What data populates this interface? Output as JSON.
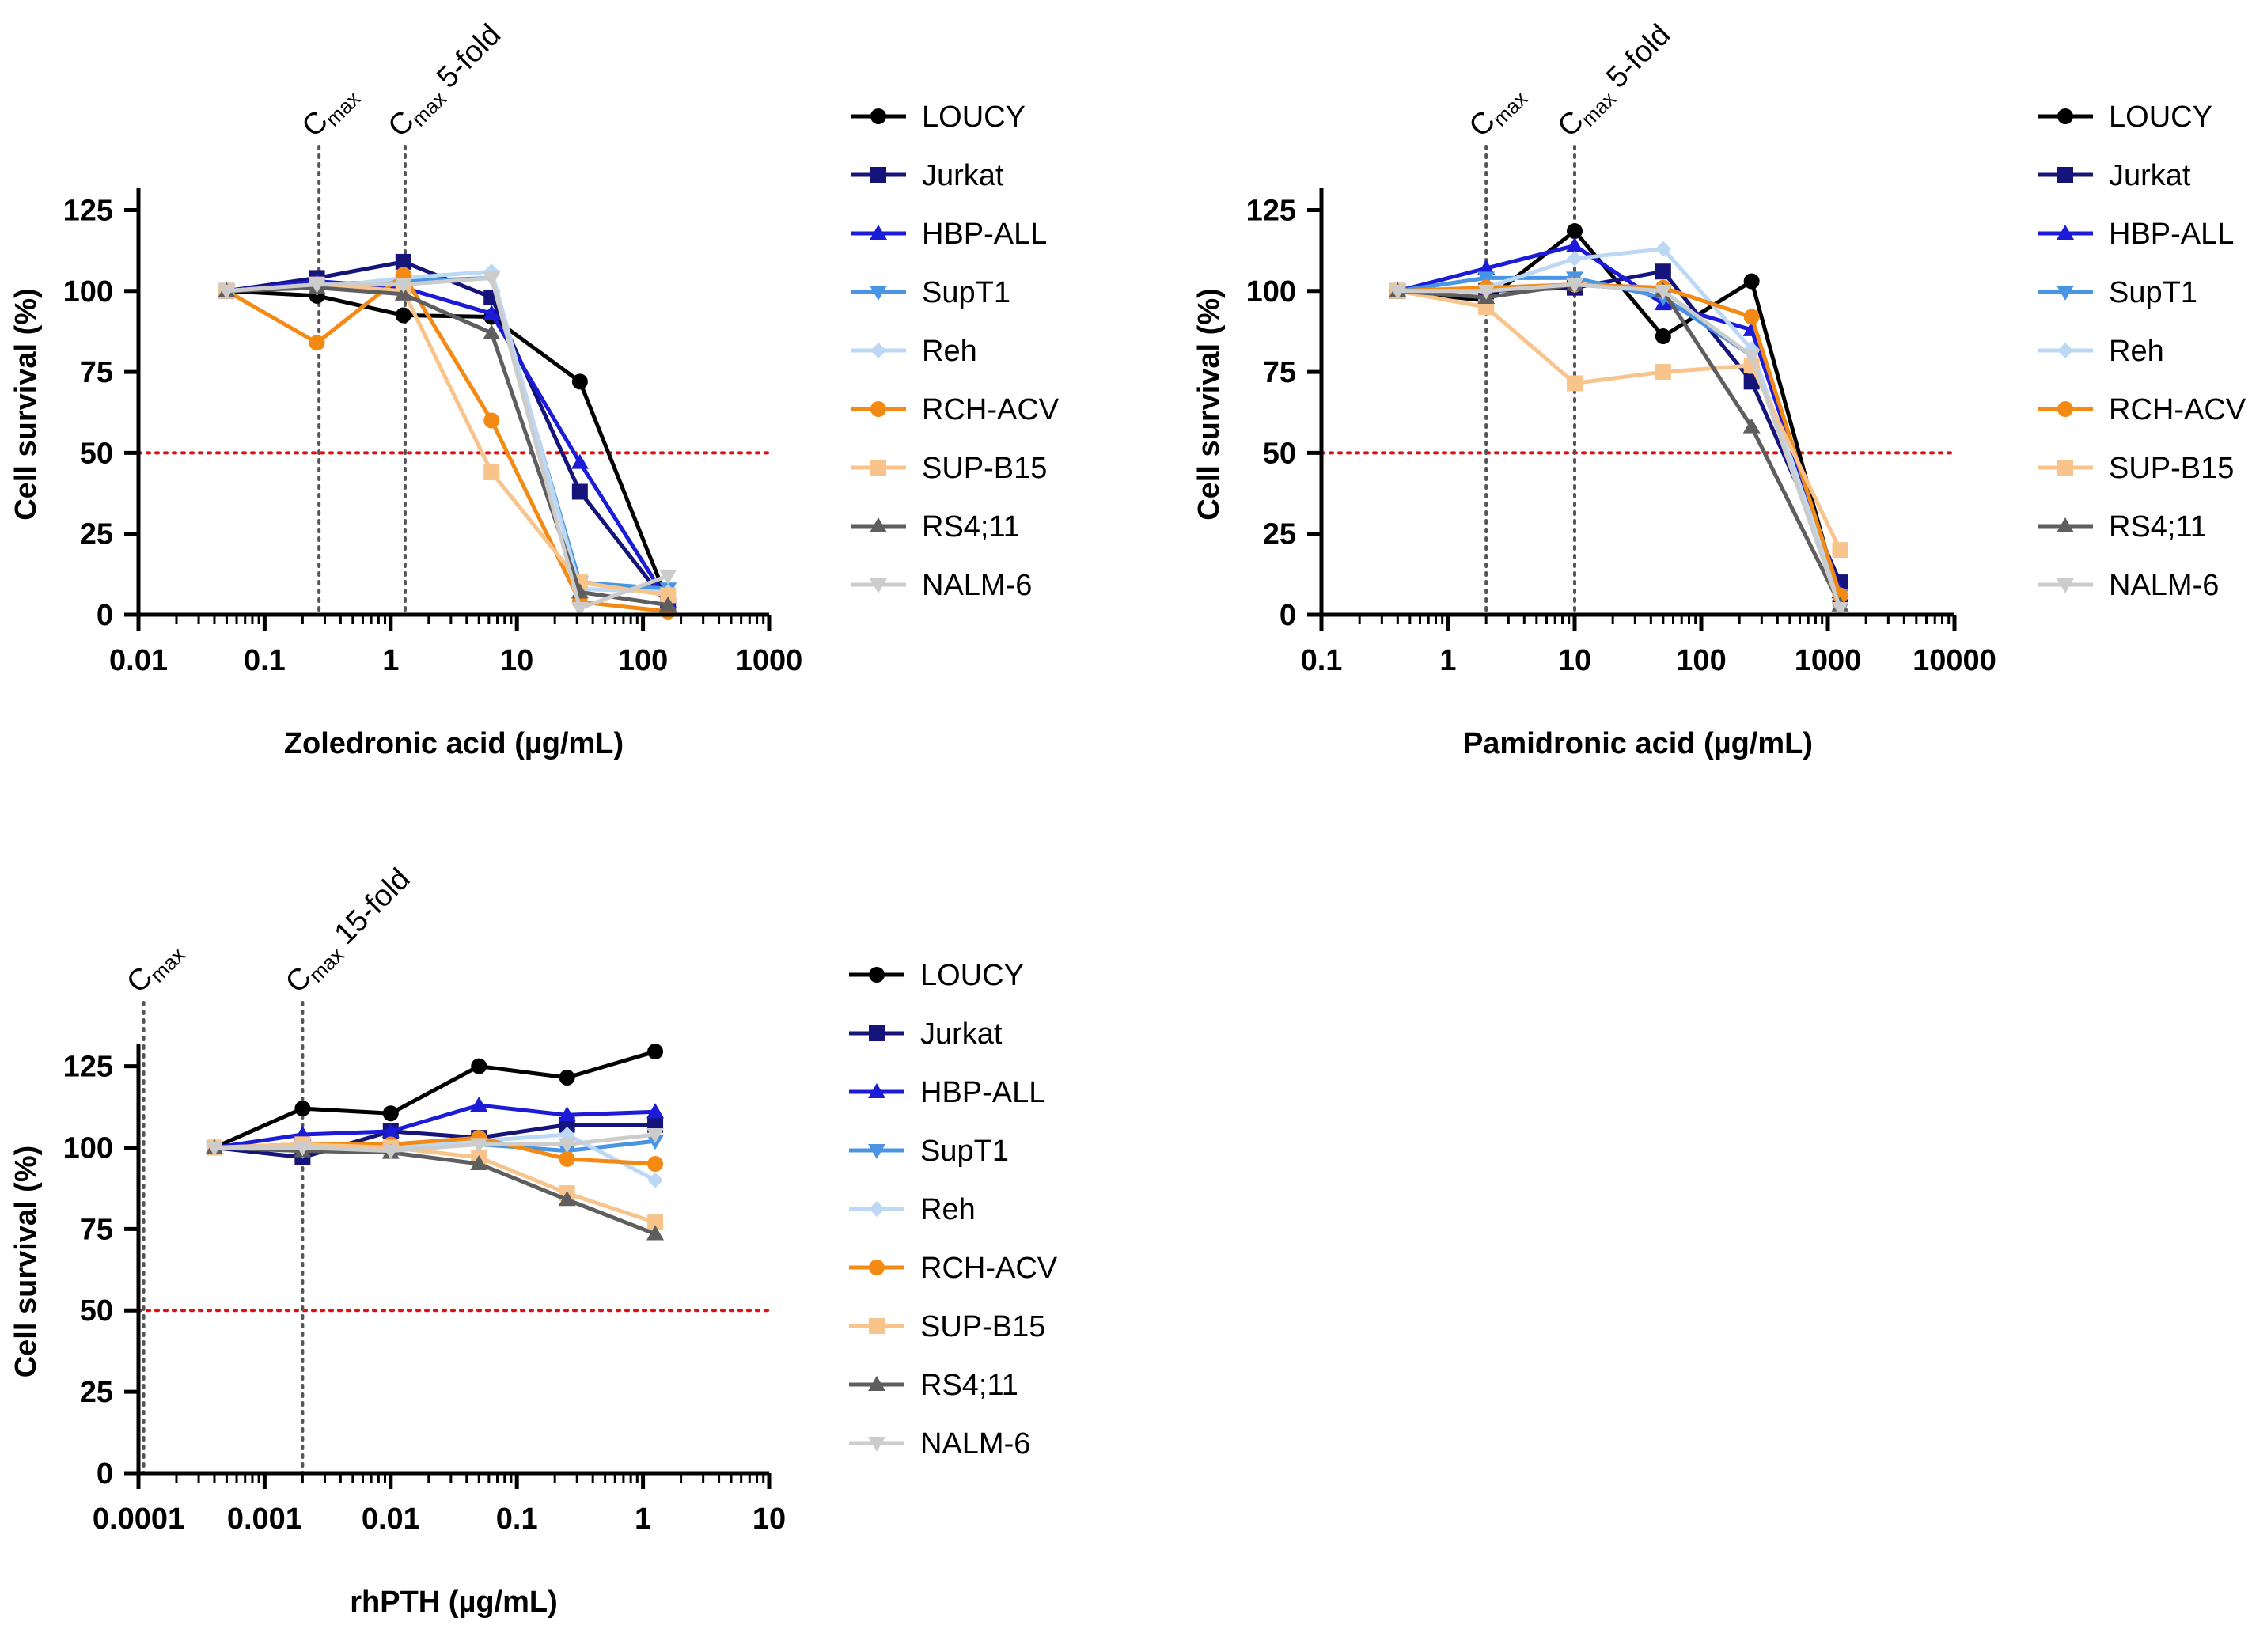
{
  "legend_series": [
    {
      "name": "LOUCY",
      "color": "#000000",
      "marker": "circle"
    },
    {
      "name": "Jurkat",
      "color": "#14147a",
      "marker": "square"
    },
    {
      "name": "HBP-ALL",
      "color": "#1c1cd8",
      "marker": "triangle-up"
    },
    {
      "name": "SupT1",
      "color": "#4a94e4",
      "marker": "triangle-down"
    },
    {
      "name": "Reh",
      "color": "#bcd8f4",
      "marker": "diamond"
    },
    {
      "name": "RCH-ACV",
      "color": "#f28a14",
      "marker": "circle"
    },
    {
      "name": "SUP-B15",
      "color": "#f8c48c",
      "marker": "square"
    },
    {
      "name": "RS4;11",
      "color": "#5e5e5e",
      "marker": "triangle-up"
    },
    {
      "name": "NALM-6",
      "color": "#cccccc",
      "marker": "triangle-down"
    }
  ],
  "threshold_color": "#e01010",
  "chart_data": [
    {
      "type": "line",
      "xscale": "log",
      "xlabel": "Zoledronic acid (µg/mL)",
      "ylabel": "Cell survival (%)",
      "xlim": [
        0.01,
        1000
      ],
      "ylim": [
        0,
        130
      ],
      "xticks": [
        "0.01",
        "0.1",
        "1",
        "10",
        "100",
        "1000"
      ],
      "yticks": [
        "0",
        "25",
        "50",
        "75",
        "100",
        "125"
      ],
      "threshold": 50,
      "reference_lines": [
        {
          "x": 0.27,
          "label": "C",
          "sub": "max",
          "suffix": ""
        },
        {
          "x": 1.3,
          "label": "C",
          "sub": "max",
          "suffix": " 5-fold"
        }
      ],
      "x": [
        0.05,
        0.26,
        1.26,
        6.3,
        31.6,
        158
      ],
      "series": [
        {
          "name": "LOUCY",
          "values": [
            100,
            98.5,
            92.5,
            92,
            72,
            4
          ]
        },
        {
          "name": "Jurkat",
          "values": [
            100,
            104,
            109,
            98,
            38,
            3
          ]
        },
        {
          "name": "HBP-ALL",
          "values": [
            100,
            103,
            101,
            93,
            47,
            4
          ]
        },
        {
          "name": "SupT1",
          "values": [
            100,
            102,
            103,
            104,
            10,
            8
          ]
        },
        {
          "name": "Reh",
          "values": [
            100,
            101,
            104,
            106,
            8,
            7
          ]
        },
        {
          "name": "RCH-ACV",
          "values": [
            100,
            84,
            105,
            60,
            4,
            1
          ]
        },
        {
          "name": "SUP-B15",
          "values": [
            100,
            102,
            100,
            44,
            10,
            6
          ]
        },
        {
          "name": "RS4;11",
          "values": [
            100,
            101,
            99,
            87,
            7,
            3
          ]
        },
        {
          "name": "NALM-6",
          "values": [
            100,
            102,
            102,
            104,
            2,
            12
          ]
        }
      ]
    },
    {
      "type": "line",
      "xscale": "log",
      "xlabel": "Pamidronic acid (µg/mL)",
      "ylabel": "Cell survival (%)",
      "xlim": [
        0.1,
        10000
      ],
      "ylim": [
        0,
        130
      ],
      "xticks": [
        "0.1",
        "1",
        "10",
        "100",
        "1000",
        "10000"
      ],
      "yticks": [
        "0",
        "25",
        "50",
        "75",
        "100",
        "125"
      ],
      "threshold": 50,
      "reference_lines": [
        {
          "x": 2,
          "label": "C",
          "sub": "max",
          "suffix": ""
        },
        {
          "x": 10,
          "label": "C",
          "sub": "max",
          "suffix": " 5-fold"
        }
      ],
      "x": [
        0.4,
        2,
        10,
        50,
        250,
        1250
      ],
      "series": [
        {
          "name": "LOUCY",
          "values": [
            100,
            97,
            118.5,
            86,
            103,
            4
          ]
        },
        {
          "name": "Jurkat",
          "values": [
            100,
            100,
            101,
            106,
            72,
            10
          ]
        },
        {
          "name": "HBP-ALL",
          "values": [
            100,
            107,
            114,
            96,
            88,
            7
          ]
        },
        {
          "name": "SupT1",
          "values": [
            100,
            104,
            104,
            98,
            80,
            6
          ]
        },
        {
          "name": "Reh",
          "values": [
            100,
            101,
            110,
            113,
            82,
            5
          ]
        },
        {
          "name": "RCH-ACV",
          "values": [
            100,
            101,
            102,
            101,
            92,
            6
          ]
        },
        {
          "name": "SUP-B15",
          "values": [
            100,
            95,
            71.5,
            75,
            77,
            20
          ]
        },
        {
          "name": "RS4;11",
          "values": [
            100,
            98,
            102,
            100,
            58,
            3
          ]
        },
        {
          "name": "NALM-6",
          "values": [
            100,
            100,
            102,
            100,
            80,
            2
          ]
        }
      ]
    },
    {
      "type": "line",
      "xscale": "log",
      "xlabel": "rhPTH (µg/mL)",
      "ylabel": "Cell survival (%)",
      "xlim": [
        0.0001,
        10
      ],
      "ylim": [
        0,
        130
      ],
      "xticks": [
        "0.0001",
        "0.001",
        "0.01",
        "0.1",
        "1",
        "10"
      ],
      "yticks": [
        "0",
        "25",
        "50",
        "75",
        "100",
        "125"
      ],
      "threshold": 50,
      "reference_lines": [
        {
          "x": 0.00011,
          "label": "C",
          "sub": "max",
          "suffix": ""
        },
        {
          "x": 0.002,
          "label": "C",
          "sub": "max",
          "suffix": " 15-fold"
        }
      ],
      "x": [
        0.0004,
        0.002,
        0.01,
        0.05,
        0.25,
        1.25
      ],
      "series": [
        {
          "name": "LOUCY",
          "values": [
            100,
            112,
            110.5,
            125,
            121.5,
            129.5
          ]
        },
        {
          "name": "Jurkat",
          "values": [
            100,
            97,
            105,
            103,
            107,
            107
          ]
        },
        {
          "name": "HBP-ALL",
          "values": [
            100,
            104,
            105,
            113,
            110,
            111
          ]
        },
        {
          "name": "SupT1",
          "values": [
            100,
            101,
            100,
            101,
            99,
            102
          ]
        },
        {
          "name": "Reh",
          "values": [
            100,
            99,
            100,
            102,
            104,
            90
          ]
        },
        {
          "name": "RCH-ACV",
          "values": [
            100,
            101,
            101,
            103,
            96.5,
            95
          ]
        },
        {
          "name": "SUP-B15",
          "values": [
            100,
            101,
            100,
            97,
            86,
            77
          ]
        },
        {
          "name": "RS4;11",
          "values": [
            100,
            99,
            98.5,
            95,
            84,
            73.5
          ]
        },
        {
          "name": "NALM-6",
          "values": [
            100,
            100,
            99,
            101,
            101,
            104
          ]
        }
      ]
    }
  ]
}
